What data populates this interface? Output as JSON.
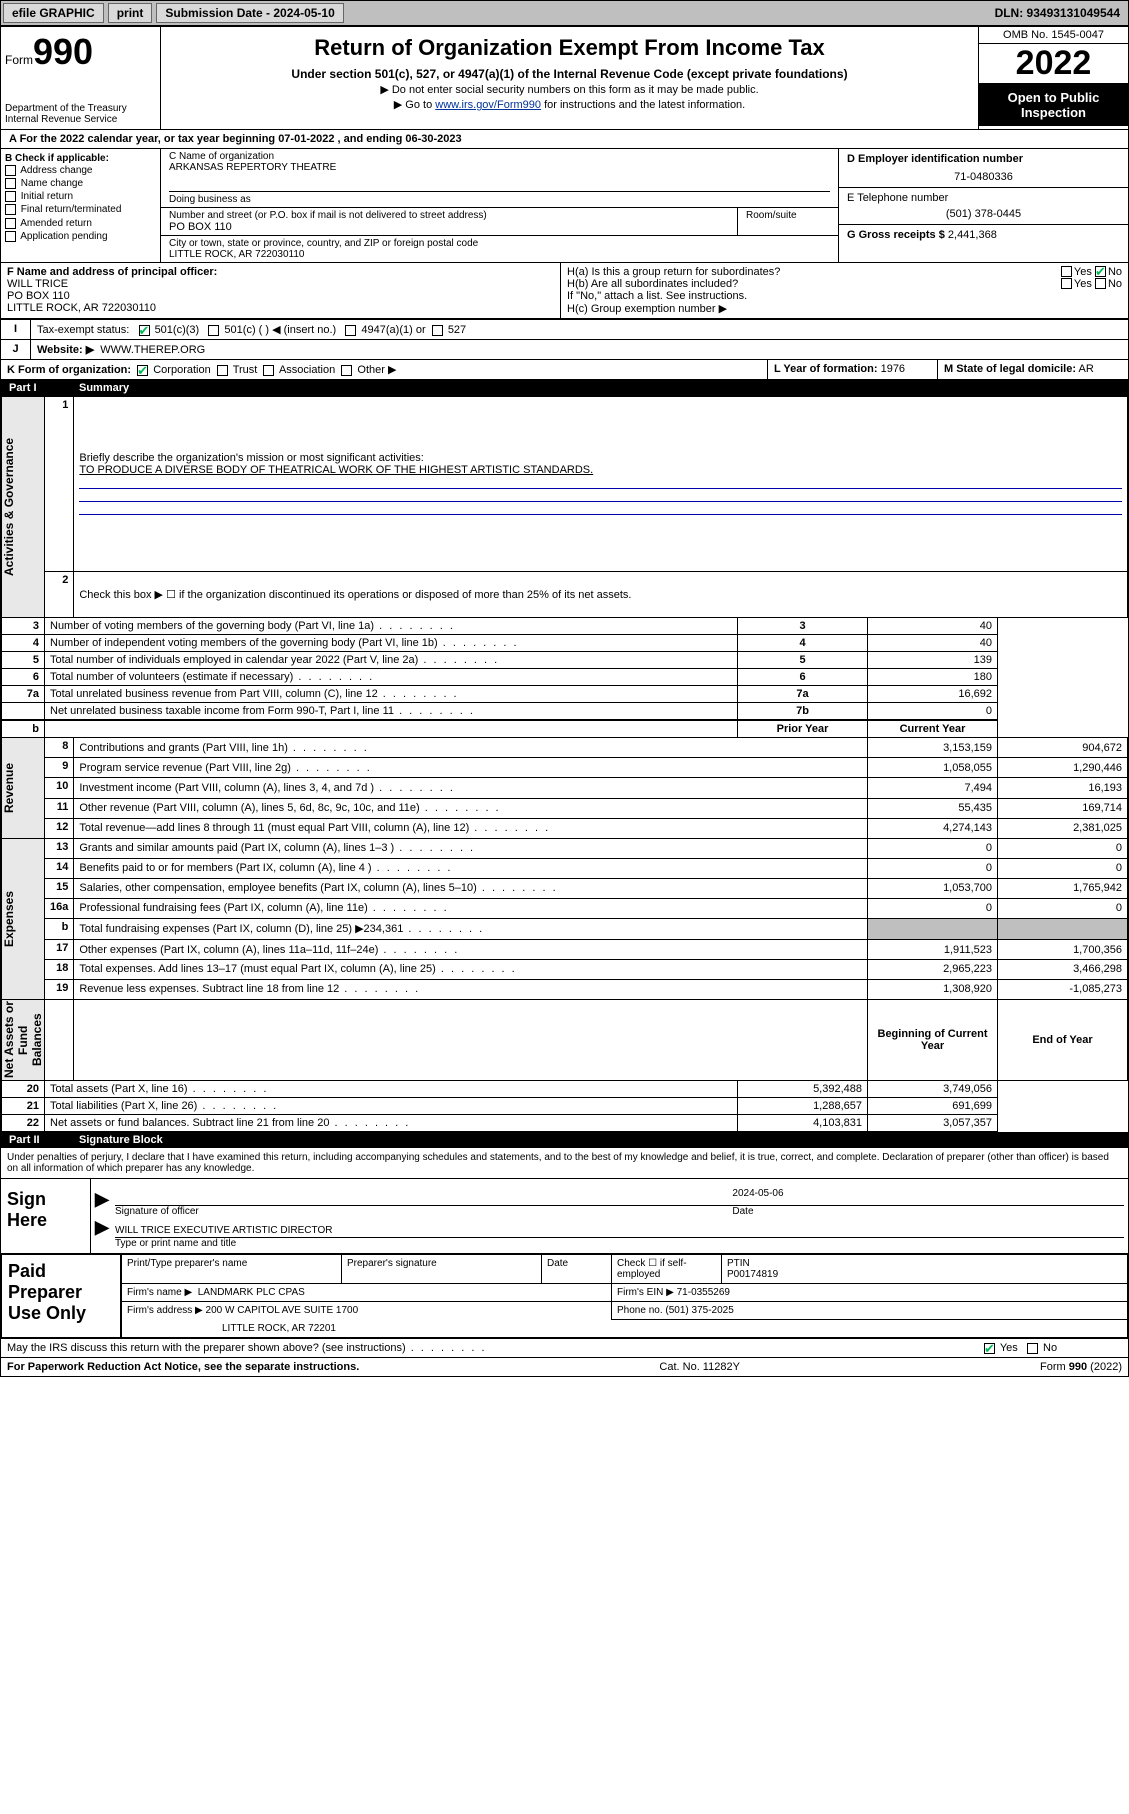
{
  "topbar": {
    "efile": "efile GRAPHIC",
    "print": "print",
    "subdate_lbl": "Submission Date - 2024-05-10",
    "dln": "DLN: 93493131049544"
  },
  "header": {
    "form": "Form",
    "num": "990",
    "dept": "Department of the Treasury",
    "irs": "Internal Revenue Service",
    "title": "Return of Organization Exempt From Income Tax",
    "sub": "Under section 501(c), 527, or 4947(a)(1) of the Internal Revenue Code (except private foundations)",
    "note1": "▶ Do not enter social security numbers on this form as it may be made public.",
    "note2_pre": "▶ Go to ",
    "note2_link": "www.irs.gov/Form990",
    "note2_post": " for instructions and the latest information.",
    "omb": "OMB No. 1545-0047",
    "year": "2022",
    "open": "Open to Public Inspection"
  },
  "A": {
    "line": "A For the 2022 calendar year, or tax year beginning 07-01-2022    , and ending 06-30-2023"
  },
  "B": {
    "title": "B Check if applicable:",
    "items": [
      "Address change",
      "Name change",
      "Initial return",
      "Final return/terminated",
      "Amended return",
      "Application pending"
    ]
  },
  "C": {
    "name_lbl": "C Name of organization",
    "name": "ARKANSAS REPERTORY THEATRE",
    "dba_lbl": "Doing business as",
    "street_lbl": "Number and street (or P.O. box if mail is not delivered to street address)",
    "room_lbl": "Room/suite",
    "street": "PO BOX 110",
    "city_lbl": "City or town, state or province, country, and ZIP or foreign postal code",
    "city": "LITTLE ROCK, AR  722030110"
  },
  "D": {
    "lbl": "D Employer identification number",
    "val": "71-0480336"
  },
  "E": {
    "lbl": "E Telephone number",
    "val": "(501) 378-0445"
  },
  "G": {
    "lbl": "G Gross receipts $",
    "val": "2,441,368"
  },
  "F": {
    "lbl": "F  Name and address of principal officer:",
    "name": "WILL TRICE",
    "addr1": "PO BOX 110",
    "addr2": "LITTLE ROCK, AR  722030110"
  },
  "H": {
    "a": "H(a)  Is this a group return for subordinates?",
    "b": "H(b)  Are all subordinates included?",
    "b_note": "If \"No,\" attach a list. See instructions.",
    "c": "H(c)  Group exemption number ▶",
    "yes": "Yes",
    "no": "No"
  },
  "I": {
    "lbl": "Tax-exempt status:",
    "o1": "501(c)(3)",
    "o2": "501(c) (  ) ◀ (insert no.)",
    "o3": "4947(a)(1) or",
    "o4": "527"
  },
  "J": {
    "lbl": "Website: ▶",
    "val": "WWW.THEREP.ORG"
  },
  "K": {
    "lbl": "K Form of organization:",
    "o1": "Corporation",
    "o2": "Trust",
    "o3": "Association",
    "o4": "Other ▶"
  },
  "L": {
    "lbl": "L Year of formation:",
    "val": "1976"
  },
  "M": {
    "lbl": "M State of legal domicile:",
    "val": "AR"
  },
  "part1": {
    "n": "Part I",
    "t": "Summary"
  },
  "sideheads": [
    "Activities & Governance",
    "Revenue",
    "Expenses",
    "Net Assets or Fund Balances"
  ],
  "mission_lbl": "Briefly describe the organization's mission or most significant activities:",
  "mission": "TO PRODUCE A DIVERSE BODY OF THEATRICAL WORK OF THE HIGHEST ARTISTIC STANDARDS.",
  "line2": "Check this box ▶ ☐  if the organization discontinued its operations or disposed of more than 25% of its net assets.",
  "gov": [
    {
      "n": "3",
      "t": "Number of voting members of the governing body (Part VI, line 1a)",
      "c": "3",
      "v": "40"
    },
    {
      "n": "4",
      "t": "Number of independent voting members of the governing body (Part VI, line 1b)",
      "c": "4",
      "v": "40"
    },
    {
      "n": "5",
      "t": "Total number of individuals employed in calendar year 2022 (Part V, line 2a)",
      "c": "5",
      "v": "139"
    },
    {
      "n": "6",
      "t": "Total number of volunteers (estimate if necessary)",
      "c": "6",
      "v": "180"
    },
    {
      "n": "7a",
      "t": "Total unrelated business revenue from Part VIII, column (C), line 12",
      "c": "7a",
      "v": "16,692"
    },
    {
      "n": "",
      "t": "Net unrelated business taxable income from Form 990-T, Part I, line 11",
      "c": "7b",
      "v": "0"
    }
  ],
  "colheads": {
    "prior": "Prior Year",
    "curr": "Current Year"
  },
  "rev": [
    {
      "n": "8",
      "t": "Contributions and grants (Part VIII, line 1h)",
      "p": "3,153,159",
      "c": "904,672"
    },
    {
      "n": "9",
      "t": "Program service revenue (Part VIII, line 2g)",
      "p": "1,058,055",
      "c": "1,290,446"
    },
    {
      "n": "10",
      "t": "Investment income (Part VIII, column (A), lines 3, 4, and 7d )",
      "p": "7,494",
      "c": "16,193"
    },
    {
      "n": "11",
      "t": "Other revenue (Part VIII, column (A), lines 5, 6d, 8c, 9c, 10c, and 11e)",
      "p": "55,435",
      "c": "169,714"
    },
    {
      "n": "12",
      "t": "Total revenue—add lines 8 through 11 (must equal Part VIII, column (A), line 12)",
      "p": "4,274,143",
      "c": "2,381,025"
    }
  ],
  "exp": [
    {
      "n": "13",
      "t": "Grants and similar amounts paid (Part IX, column (A), lines 1–3 )",
      "p": "0",
      "c": "0"
    },
    {
      "n": "14",
      "t": "Benefits paid to or for members (Part IX, column (A), line 4 )",
      "p": "0",
      "c": "0"
    },
    {
      "n": "15",
      "t": "Salaries, other compensation, employee benefits (Part IX, column (A), lines 5–10)",
      "p": "1,053,700",
      "c": "1,765,942"
    },
    {
      "n": "16a",
      "t": "Professional fundraising fees (Part IX, column (A), line 11e)",
      "p": "0",
      "c": "0"
    },
    {
      "n": "b",
      "t": "Total fundraising expenses (Part IX, column (D), line 25) ▶234,361",
      "p": "",
      "c": "",
      "grey": true
    },
    {
      "n": "17",
      "t": "Other expenses (Part IX, column (A), lines 11a–11d, 11f–24e)",
      "p": "1,911,523",
      "c": "1,700,356"
    },
    {
      "n": "18",
      "t": "Total expenses. Add lines 13–17 (must equal Part IX, column (A), line 25)",
      "p": "2,965,223",
      "c": "3,466,298"
    },
    {
      "n": "19",
      "t": "Revenue less expenses. Subtract line 18 from line 12",
      "p": "1,308,920",
      "c": "-1,085,273"
    }
  ],
  "colheads2": {
    "beg": "Beginning of Current Year",
    "end": "End of Year"
  },
  "net": [
    {
      "n": "20",
      "t": "Total assets (Part X, line 16)",
      "p": "5,392,488",
      "c": "3,749,056"
    },
    {
      "n": "21",
      "t": "Total liabilities (Part X, line 26)",
      "p": "1,288,657",
      "c": "691,699"
    },
    {
      "n": "22",
      "t": "Net assets or fund balances. Subtract line 21 from line 20",
      "p": "4,103,831",
      "c": "3,057,357"
    }
  ],
  "part2": {
    "n": "Part II",
    "t": "Signature Block"
  },
  "penalties": "Under penalties of perjury, I declare that I have examined this return, including accompanying schedules and statements, and to the best of my knowledge and belief, it is true, correct, and complete. Declaration of preparer (other than officer) is based on all information of which preparer has any knowledge.",
  "sign": {
    "here": "Sign Here",
    "sig_lbl": "Signature of officer",
    "date_lbl": "Date",
    "date": "2024-05-06",
    "name": "WILL TRICE EXECUTIVE ARTISTIC DIRECTOR",
    "name_lbl": "Type or print name and title"
  },
  "prep": {
    "title": "Paid Preparer Use Only",
    "h1": "Print/Type preparer's name",
    "h2": "Preparer's signature",
    "h3": "Date",
    "h4_chk": "Check ☐ if self-employed",
    "h5": "PTIN",
    "ptin": "P00174819",
    "firm_lbl": "Firm's name   ▶",
    "firm": "LANDMARK PLC CPAS",
    "ein_lbl": "Firm's EIN ▶",
    "ein": "71-0355269",
    "addr_lbl": "Firm's address ▶",
    "addr1": "200 W CAPITOL AVE SUITE 1700",
    "addr2": "LITTLE ROCK, AR  72201",
    "phone_lbl": "Phone no.",
    "phone": "(501) 375-2025"
  },
  "irs_discuss": "May the IRS discuss this return with the preparer shown above? (see instructions)",
  "footer": {
    "pra": "For Paperwork Reduction Act Notice, see the separate instructions.",
    "cat": "Cat. No. 11282Y",
    "form": "Form 990 (2022)"
  },
  "yes": "Yes",
  "no": "No"
}
